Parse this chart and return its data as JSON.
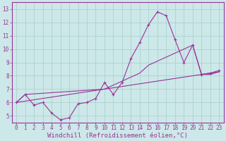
{
  "background_color": "#cce8e8",
  "grid_color": "#aacccc",
  "line_color": "#993399",
  "yticks": [
    5,
    6,
    7,
    8,
    9,
    10,
    11,
    12,
    13
  ],
  "xticks": [
    0,
    1,
    2,
    3,
    4,
    5,
    6,
    7,
    8,
    9,
    10,
    11,
    12,
    13,
    14,
    15,
    16,
    17,
    18,
    19,
    20,
    21,
    22,
    23
  ],
  "xlabel": "Windchill (Refroidissement éolien,°C)",
  "line1_x": [
    0,
    1,
    2,
    3,
    4,
    5,
    6,
    7,
    8,
    9,
    10,
    11,
    12,
    13,
    14,
    15,
    16,
    17,
    18,
    19,
    20,
    21,
    22,
    23
  ],
  "line1_y": [
    6.0,
    6.6,
    5.8,
    6.0,
    5.2,
    4.7,
    4.85,
    5.9,
    6.0,
    6.3,
    7.5,
    6.6,
    7.5,
    9.3,
    10.5,
    11.85,
    12.8,
    12.5,
    10.7,
    9.0,
    10.3,
    8.1,
    8.2,
    8.4
  ],
  "line2_x": [
    0,
    23
  ],
  "line2_y": [
    6.0,
    8.3
  ],
  "line3_x": [
    0,
    1,
    10,
    14,
    15,
    20,
    21,
    22,
    23
  ],
  "line3_y": [
    6.0,
    6.6,
    7.0,
    8.2,
    8.8,
    10.3,
    8.1,
    8.1,
    8.3
  ],
  "font_family": "monospace",
  "tick_fontsize": 5.5,
  "xlabel_fontsize": 6.5
}
